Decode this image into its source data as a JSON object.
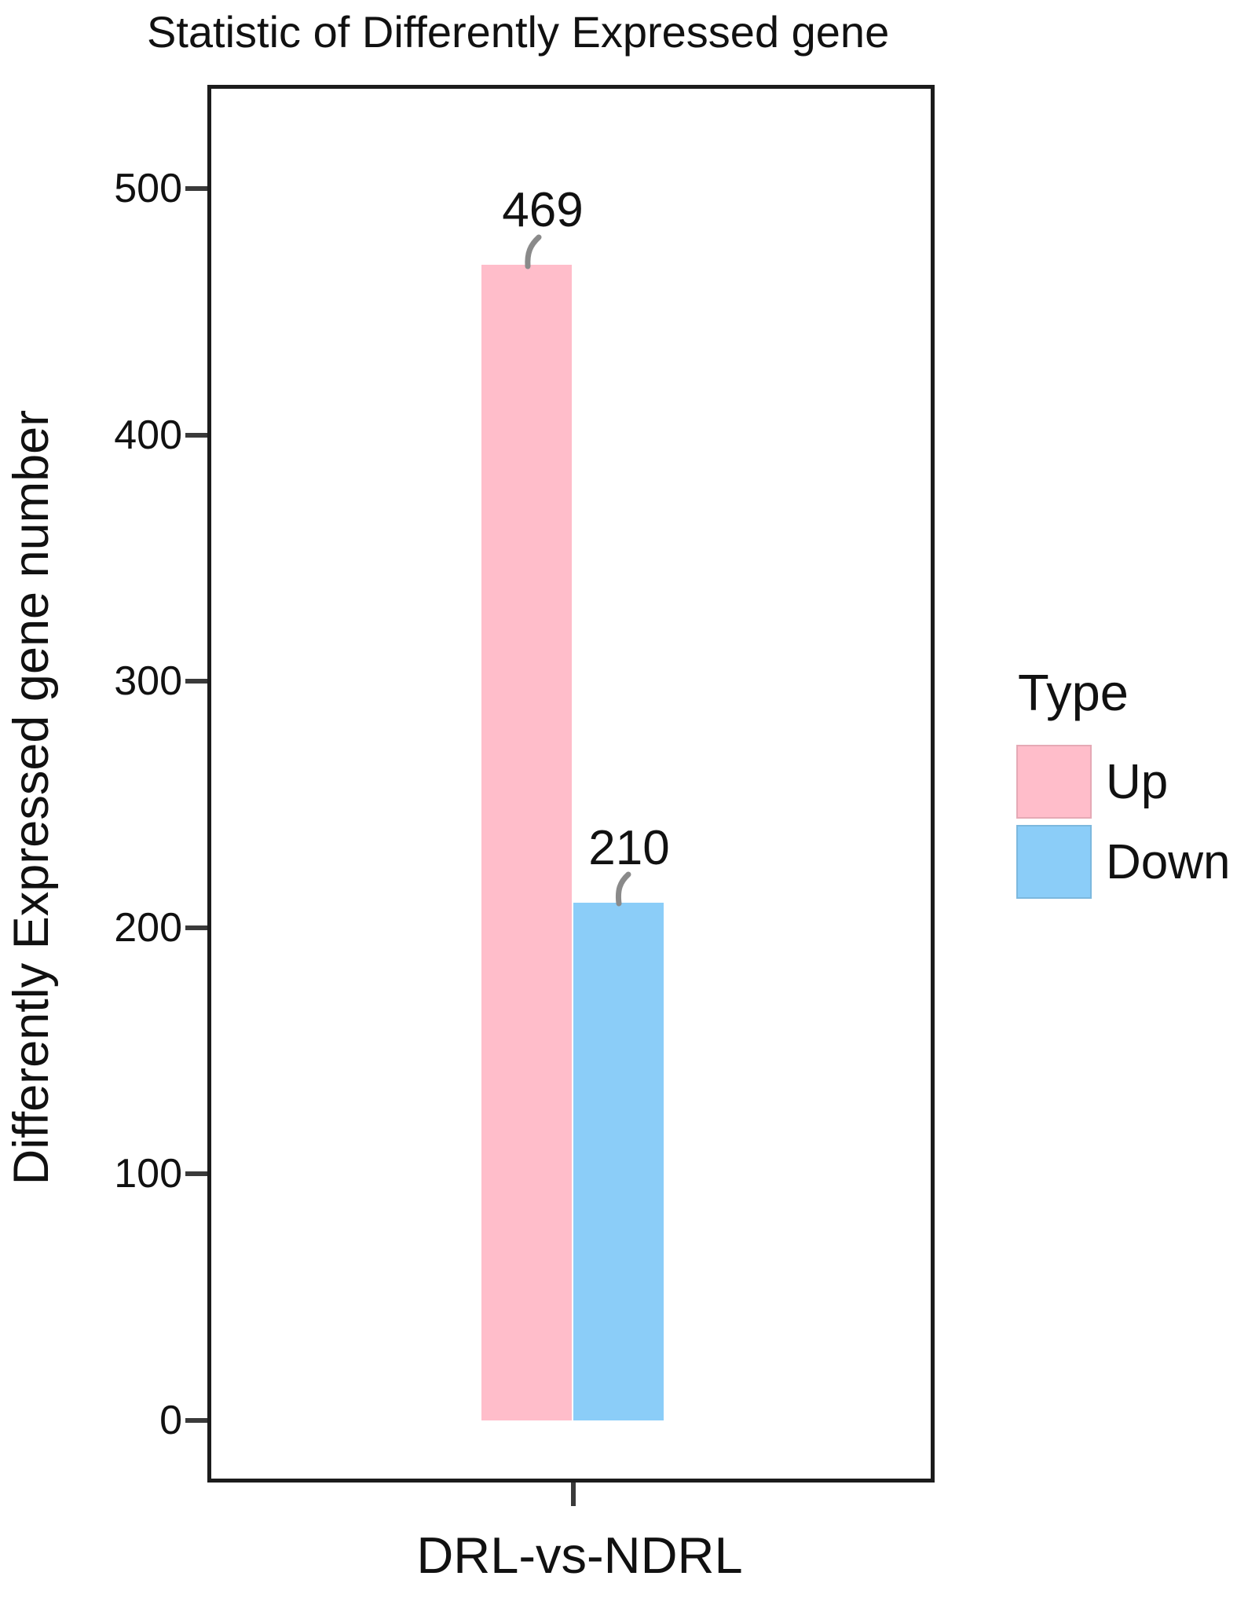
{
  "chart_data": {
    "type": "bar",
    "title": "Statistic of Differently Expressed gene",
    "xlabel": "DRL-vs-NDRL",
    "ylabel": "Differently Expressed gene number",
    "categories": [
      "DRL-vs-NDRL"
    ],
    "series": [
      {
        "name": "Up",
        "values": [
          469
        ],
        "color": "#FFBDCA"
      },
      {
        "name": "Down",
        "values": [
          210
        ],
        "color": "#8BCDF8"
      }
    ],
    "ylim": [
      0,
      500
    ],
    "yticks": [
      0,
      100,
      200,
      300,
      400,
      500
    ],
    "grid": false,
    "legend": {
      "title": "Type",
      "position": "right"
    },
    "bar_labels": [
      "469",
      "210"
    ],
    "colors": {
      "up": "#FFBDCA",
      "down": "#8BCDF8",
      "panel_border": "#1c1c1c",
      "tick_mark": "#3a3a3a",
      "connector": "#8a8a8a",
      "text": "#111111"
    }
  }
}
